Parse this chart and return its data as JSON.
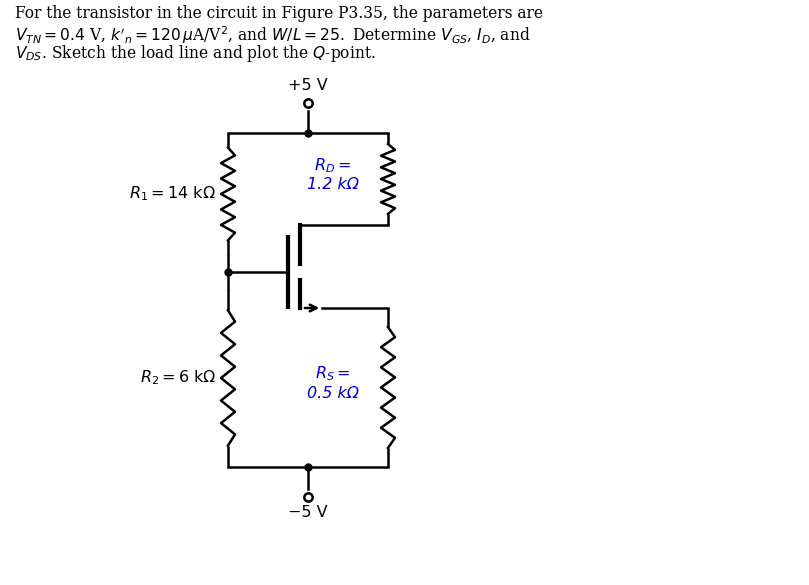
{
  "title_line1": "For the transistor in the circuit in Figure P3.35, the parameters are",
  "title_line2": "$V_{TN} = 0.4$ V, $k'_n = 120\\,\\mu$A/V$^2$, and $W/L = 25.$ Determine $V_{GS}$, $I_D$, and",
  "title_line3": "$V_{DS}$. Sketch the load line and plot the $Q$-point.",
  "vdd": "+5 V",
  "vss": "−5 V",
  "R1_label": "$R_1 = 14$ kΩ",
  "R2_label": "$R_2= 6$ kΩ",
  "RD_label": "$R_D=$\n1.2 kΩ",
  "RS_label": "$R_S=$\n0.5 kΩ",
  "bg_color": "#ffffff",
  "line_color": "#000000",
  "text_color": "#000000",
  "label_color_RD": "#0000cc",
  "label_color_RS": "#0000cc"
}
